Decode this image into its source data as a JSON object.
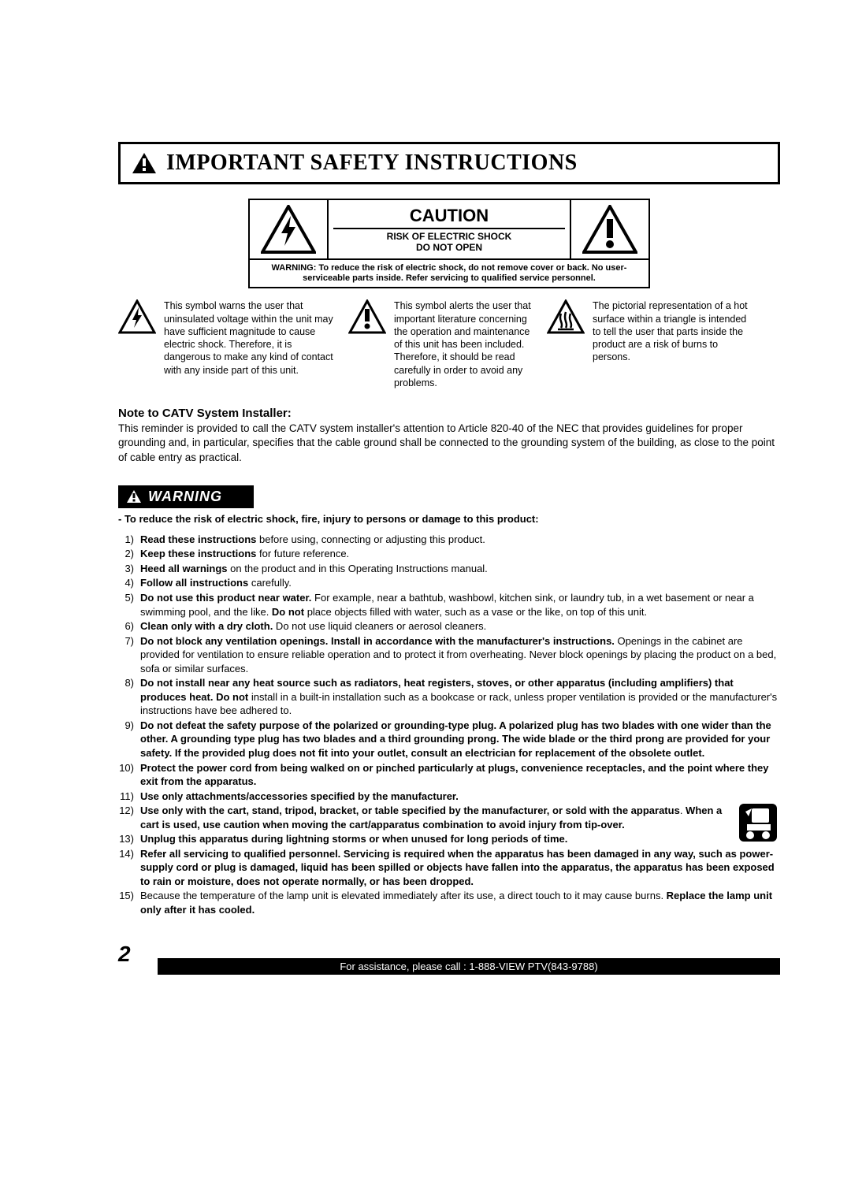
{
  "title": "IMPORTANT SAFETY INSTRUCTIONS",
  "caution": {
    "heading": "CAUTION",
    "risk_line1": "RISK OF ELECTRIC SHOCK",
    "risk_line2": "DO NOT OPEN",
    "warning_text": "WARNING: To reduce the risk of electric shock, do not remove cover or back. No user-serviceable parts inside. Refer servicing to qualified service personnel."
  },
  "symbols": {
    "bolt": "This symbol warns the user that uninsulated voltage within the unit may have sufficient magnitude to cause electric shock. Therefore, it is dangerous to make any kind of contact with any inside part of this unit.",
    "exclaim": "This symbol alerts the user that important literature concerning the operation and maintenance of this unit has been included. Therefore, it should be read carefully in order to avoid any problems.",
    "hot": "The pictorial representation of a hot surface within a triangle is intended to tell the user that parts inside the product are a risk of burns to persons."
  },
  "catv": {
    "title": "Note to CATV System Installer:",
    "text": "This reminder is provided to call the CATV system installer's attention to Article 820-40 of the NEC that provides guidelines for proper grounding and, in particular, specifies that the cable ground shall be connected to the grounding system of the building, as close to the point of cable entry as practical."
  },
  "warning": {
    "label": "WARNING",
    "lead": "- To reduce the risk of electric shock, fire, injury to persons or damage to this product:",
    "items": [
      {
        "n": "1)",
        "bold": "Read these instructions",
        "rest": " before using, connecting or adjusting this product."
      },
      {
        "n": "2)",
        "bold": "Keep these instructions",
        "rest": " for future reference."
      },
      {
        "n": "3)",
        "bold": "Heed all warnings",
        "rest": " on the product and in this Operating Instructions manual."
      },
      {
        "n": "4)",
        "bold": "Follow all instructions",
        "rest": " carefully."
      },
      {
        "n": "5)",
        "bold": "Do not use this product near water.",
        "rest": " For example, near a bathtub, washbowl, kitchen sink, or laundry tub, in a wet basement or near a swimming pool, and the like. ",
        "bold2": "Do not",
        "rest2": " place objects filled with water, such as a vase or the like, on top of this unit."
      },
      {
        "n": "6)",
        "bold": "Clean only with a dry cloth.",
        "rest": " Do not use liquid cleaners or aerosol cleaners."
      },
      {
        "n": "7)",
        "bold": "Do not block any ventilation openings. Install in accordance with the manufacturer's instructions.",
        "rest": " Openings in the cabinet are provided for ventilation to ensure reliable operation and to protect it from overheating. Never block openings by placing the product on a bed, sofa or similar surfaces."
      },
      {
        "n": "8)",
        "bold": "Do not install near any heat source such as radiators, heat registers, stoves, or other apparatus (including amplifiers) that produces heat. Do not",
        "rest": " install in a built-in installation such as a bookcase or rack, unless proper ventilation is provided or the manufacturer's instructions have bee adhered to."
      },
      {
        "n": "9)",
        "bold": "Do not defeat the safety purpose of the polarized or grounding-type plug. A polarized plug has two blades with one wider than the other. A grounding type plug has two blades and a third grounding prong. The wide blade or the third prong are provided for your safety. If the provided plug does not fit into your outlet, consult an electrician for replacement of the obsolete outlet.",
        "rest": ""
      },
      {
        "n": "10)",
        "bold": "Protect the power cord from being walked on or pinched particularly at plugs, convenience receptacles, and the point where they exit from the apparatus.",
        "rest": ""
      },
      {
        "n": "11)",
        "bold": "Use only attachments/accessories specified by the manufacturer.",
        "rest": ""
      },
      {
        "n": "12)",
        "bold": "Use only with the cart, stand, tripod, bracket, or table specified by the manufacturer, or sold with the apparatus",
        "rest": ". ",
        "bold2": "When a cart is used, use caution when moving the cart/apparatus combination to avoid injury from tip-over.",
        "rest2": "",
        "img": true
      },
      {
        "n": "13)",
        "bold": "Unplug this apparatus during lightning storms or when unused for long periods of time.",
        "rest": ""
      },
      {
        "n": "14)",
        "bold": "Refer all servicing to qualified personnel. Servicing is required when the apparatus has been damaged in any way, such as power-supply cord or plug is damaged, liquid has been spilled or objects have fallen into the apparatus, the apparatus has been exposed to rain or moisture, does not operate normally, or has been dropped.",
        "rest": ""
      },
      {
        "n": "15)",
        "bold": "",
        "rest": "Because the temperature of the lamp unit is elevated immediately after its use, a direct touch to it may cause burns. ",
        "bold2": "Replace the lamp unit only after it has cooled.",
        "rest2": ""
      }
    ]
  },
  "footer": "For assistance, please call : 1-888-VIEW PTV(843-9788)",
  "page_number": "2",
  "colors": {
    "black": "#000000",
    "white": "#ffffff"
  }
}
